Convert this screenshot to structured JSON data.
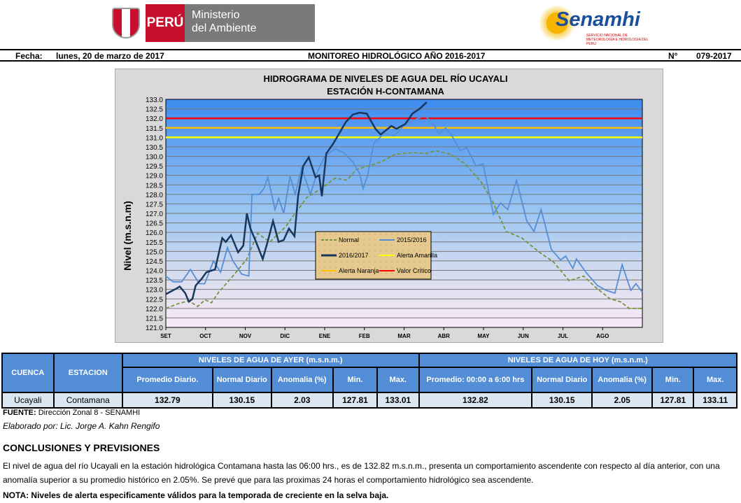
{
  "header": {
    "country": "PERÚ",
    "ministry_line1": "Ministerio",
    "ministry_line2": "del Ambiente",
    "brand": "Senamhi",
    "brand_sub": "SERVICIO NACIONAL DE METEOROLOGÍA E HIDROLOGÍA DEL PERÚ",
    "fecha_label": "Fecha:",
    "fecha": "lunes, 20 de marzo de 2017",
    "title": "MONITOREO HIDROLÓGICO AÑO  2016-2017",
    "num_label": "N°",
    "num": "079-2017"
  },
  "chart_data": {
    "type": "line",
    "title": "HIDROGRAMA DE NIVELES DE AGUA DEL RÍO UCAYALI",
    "subtitle": "ESTACIÓN  H-CONTAMANA",
    "ylabel": "Nivel (m.s.n.m)",
    "xlabel": "",
    "ylim": [
      121,
      133
    ],
    "yticks": [
      "121.0",
      "121.5",
      "122.0",
      "122.5",
      "123.0",
      "123.5",
      "124.0",
      "124.5",
      "125.0",
      "125.5",
      "126.0",
      "126.5",
      "127.0",
      "127.5",
      "128.0",
      "128.5",
      "129.0",
      "129.5",
      "130.0",
      "130.5",
      "131.0",
      "131.5",
      "132.0",
      "132.5",
      "133.0"
    ],
    "categories": [
      "SET",
      "OCT",
      "NOV",
      "DIC",
      "ENE",
      "FEB",
      "MAR",
      "ABR",
      "MAY",
      "JUN",
      "JUL",
      "AGO"
    ],
    "legend": [
      "Normal",
      "2015/2016",
      "2016/2017",
      "Alerta Amarilla",
      "Alerta Naranja",
      "Valor Crítico"
    ],
    "thresholds": [
      {
        "name": "Alerta Amarilla",
        "value": 131.0,
        "color": "#ffff00"
      },
      {
        "name": "Alerta Naranja",
        "value": 131.5,
        "color": "#ffc000"
      },
      {
        "name": "Valor Crítico",
        "value": 132.0,
        "color": "#ff0000"
      }
    ],
    "series": [
      {
        "name": "Normal",
        "color": "#77933c",
        "dash": true,
        "points": [
          [
            0,
            122
          ],
          [
            0.31,
            122.25
          ],
          [
            0.58,
            122.4
          ],
          [
            0.8,
            122.1
          ],
          [
            0.99,
            122.45
          ],
          [
            1.15,
            122.3
          ],
          [
            1.33,
            122.85
          ],
          [
            1.69,
            123.7
          ],
          [
            2.04,
            124.6
          ],
          [
            2.31,
            125.95
          ],
          [
            2.62,
            125.5
          ],
          [
            3.02,
            126.3
          ],
          [
            3.2,
            126.85
          ],
          [
            3.56,
            127.85
          ],
          [
            3.91,
            128.3
          ],
          [
            4.26,
            128.85
          ],
          [
            4.57,
            128.75
          ],
          [
            4.79,
            129.3
          ],
          [
            5.41,
            129.7
          ],
          [
            5.77,
            130.1
          ],
          [
            6.21,
            130.2
          ],
          [
            6.57,
            130.15
          ],
          [
            6.79,
            130.3
          ],
          [
            7.19,
            130.1
          ],
          [
            7.54,
            129.6
          ],
          [
            7.94,
            128.65
          ],
          [
            8.21,
            127.7
          ],
          [
            8.57,
            126.05
          ],
          [
            8.97,
            125.7
          ],
          [
            9.41,
            124.95
          ],
          [
            9.76,
            124.45
          ],
          [
            10.16,
            123.45
          ],
          [
            10.52,
            123.7
          ],
          [
            10.83,
            123.1
          ],
          [
            11.19,
            122.5
          ],
          [
            11.45,
            122.35
          ],
          [
            11.67,
            122
          ],
          [
            12,
            122
          ]
        ]
      },
      {
        "name": "2015/2016",
        "color": "#558ed5",
        "dash": false,
        "points": [
          [
            0,
            123.7
          ],
          [
            0.18,
            123.4
          ],
          [
            0.4,
            123.4
          ],
          [
            0.62,
            124.05
          ],
          [
            0.84,
            123.3
          ],
          [
            0.98,
            123.3
          ],
          [
            1.2,
            124.5
          ],
          [
            1.38,
            123.9
          ],
          [
            1.55,
            125.2
          ],
          [
            1.69,
            124.5
          ],
          [
            1.91,
            123.8
          ],
          [
            2.09,
            123.7
          ],
          [
            2.17,
            128
          ],
          [
            2.35,
            128
          ],
          [
            2.47,
            128.3
          ],
          [
            2.57,
            128.9
          ],
          [
            2.75,
            127.2
          ],
          [
            2.84,
            127.8
          ],
          [
            2.97,
            127
          ],
          [
            3.13,
            128.95
          ],
          [
            3.26,
            128
          ],
          [
            3.42,
            129.4
          ],
          [
            3.64,
            128
          ],
          [
            3.82,
            129.2
          ],
          [
            4,
            130
          ],
          [
            4.26,
            130.4
          ],
          [
            4.48,
            130.2
          ],
          [
            4.71,
            129.7
          ],
          [
            4.88,
            129.1
          ],
          [
            4.97,
            128.3
          ],
          [
            5.08,
            129
          ],
          [
            5.24,
            130.7
          ],
          [
            5.5,
            131.2
          ],
          [
            5.77,
            131.1
          ],
          [
            6.03,
            131.7
          ],
          [
            6.3,
            131.95
          ],
          [
            6.52,
            132.15
          ],
          [
            6.7,
            131.8
          ],
          [
            6.88,
            131.2
          ],
          [
            7.05,
            131.5
          ],
          [
            7.23,
            131
          ],
          [
            7.41,
            130.3
          ],
          [
            7.58,
            130.45
          ],
          [
            7.81,
            129.5
          ],
          [
            7.99,
            129.6
          ],
          [
            8.25,
            126.95
          ],
          [
            8.43,
            127.55
          ],
          [
            8.61,
            127.2
          ],
          [
            8.83,
            128.75
          ],
          [
            9.09,
            126.6
          ],
          [
            9.27,
            126.05
          ],
          [
            9.45,
            127.2
          ],
          [
            9.71,
            125.1
          ],
          [
            9.94,
            124.55
          ],
          [
            10.07,
            124.75
          ],
          [
            10.25,
            124.1
          ],
          [
            10.34,
            124.6
          ],
          [
            10.6,
            123.85
          ],
          [
            10.87,
            123.2
          ],
          [
            11.09,
            122.95
          ],
          [
            11.31,
            122.8
          ],
          [
            11.49,
            124.3
          ],
          [
            11.71,
            122.95
          ],
          [
            11.84,
            123.3
          ],
          [
            12,
            122.85
          ]
        ]
      },
      {
        "name": "2016/2017",
        "color": "#17375e",
        "dash": false,
        "points": [
          [
            0,
            122.75
          ],
          [
            0.27,
            123.05
          ],
          [
            0.35,
            123.15
          ],
          [
            0.49,
            122.8
          ],
          [
            0.58,
            122.35
          ],
          [
            0.67,
            122.5
          ],
          [
            0.75,
            123.2
          ],
          [
            0.9,
            123.55
          ],
          [
            1.02,
            123.9
          ],
          [
            1.24,
            124.05
          ],
          [
            1.42,
            125.7
          ],
          [
            1.51,
            125.5
          ],
          [
            1.64,
            125.85
          ],
          [
            1.82,
            124.95
          ],
          [
            1.95,
            125.3
          ],
          [
            2.04,
            127
          ],
          [
            2.13,
            126.2
          ],
          [
            2.26,
            125.55
          ],
          [
            2.44,
            124.6
          ],
          [
            2.57,
            125.55
          ],
          [
            2.7,
            126.6
          ],
          [
            2.84,
            125.5
          ],
          [
            2.97,
            125.6
          ],
          [
            3.1,
            126.2
          ],
          [
            3.24,
            125.8
          ],
          [
            3.33,
            127.9
          ],
          [
            3.46,
            129.5
          ],
          [
            3.6,
            129.95
          ],
          [
            3.77,
            128.9
          ],
          [
            3.86,
            129
          ],
          [
            3.93,
            127.9
          ],
          [
            4.04,
            130.15
          ],
          [
            4.21,
            130.65
          ],
          [
            4.35,
            131.15
          ],
          [
            4.53,
            131.8
          ],
          [
            4.71,
            132.2
          ],
          [
            4.88,
            132.3
          ],
          [
            5.06,
            132.25
          ],
          [
            5.28,
            131.45
          ],
          [
            5.41,
            131.15
          ],
          [
            5.68,
            131.6
          ],
          [
            5.81,
            131.45
          ],
          [
            6.03,
            131.7
          ],
          [
            6.21,
            132.25
          ],
          [
            6.39,
            132.5
          ],
          [
            6.57,
            132.85
          ]
        ]
      }
    ]
  },
  "table": {
    "col_cuenca": "CUENCA",
    "col_estacion": "ESTACION",
    "group_ayer": "NIVELES DE AGUA DE AYER (m.s.n.m.)",
    "group_hoy": "NIVELES DE AGUA DE HOY (m.s.n.m.)",
    "ayer_cols": [
      "Promedio  Diario.",
      "Normal Diario",
      "Anomalia (%)",
      "Min.",
      "Max."
    ],
    "hoy_cols": [
      "Promedio: 00:00 a 6:00 hrs",
      "Normal Diario",
      "Anomalia (%)",
      "Min.",
      "Max."
    ],
    "cuenca": "Ucayali",
    "estacion": "Contamana",
    "ayer": [
      "132.79",
      "130.15",
      "2.03",
      "127.81",
      "133.01"
    ],
    "hoy": [
      "132.82",
      "130.15",
      "2.05",
      "127.81",
      "133.11"
    ]
  },
  "footer": {
    "fuente_label": "FUENTE:",
    "fuente": " Dirección Zonal 8 - SENAMHI",
    "elaborado": "Elaborado por: Lic. Jorge A. Kahn Rengifo",
    "conc_title": "CONCLUSIONES Y PREVISIONES",
    "conc_text": "El nivel de agua del río Ucayali  en la estación hidrológica Contamana hasta las 06:00 hrs., es de 132.82 m.s.n.m., presenta  un comportamiento ascendente con respecto al día anterior, con una anomalía superior  a su promedio histórico  en 2.05%. Se prevé que para las proximas 24 horas el comportamiento hidrológico sea ascendente.",
    "nota": "NOTA: Niveles de alerta especificamente válidos para la temporada de creciente en la selva baja."
  }
}
